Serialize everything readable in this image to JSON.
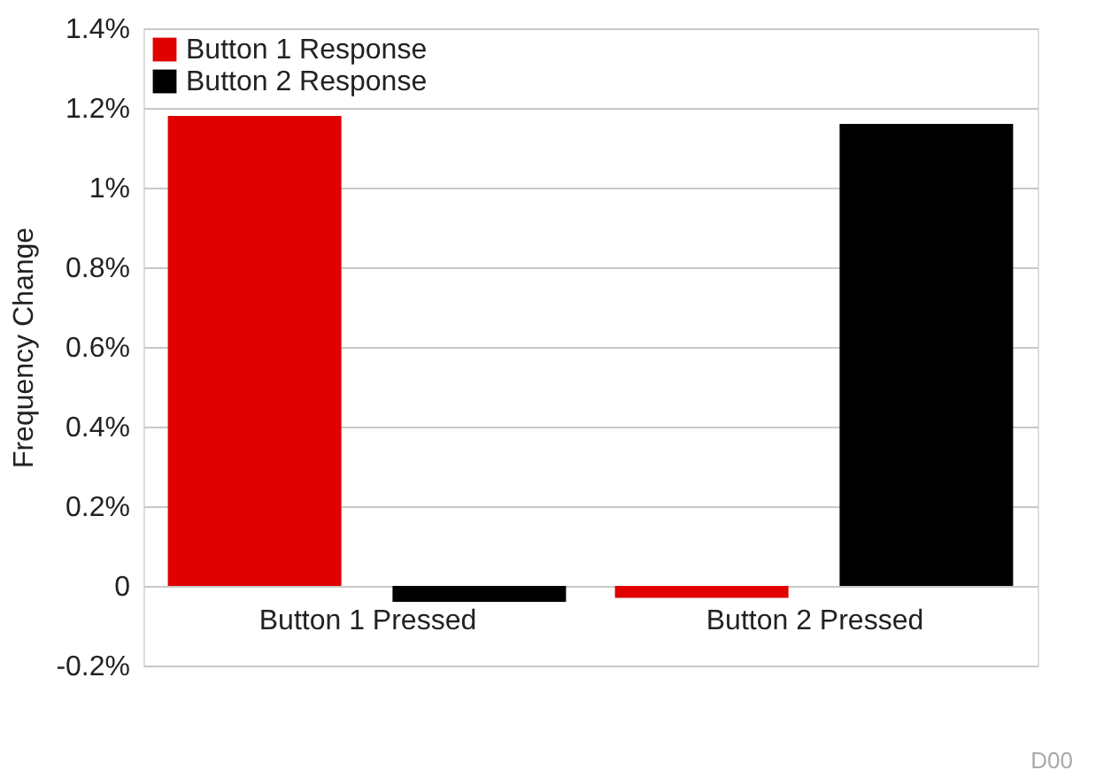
{
  "chart_data": {
    "type": "bar",
    "ylabel": "Frequency Change",
    "categories": [
      "Button 1 Pressed",
      "Button 2 Pressed"
    ],
    "series": [
      {
        "name": "Button 1 Response",
        "color": "#e00000",
        "values": [
          1.18,
          -0.03
        ]
      },
      {
        "name": "Button 2 Response",
        "color": "#000000",
        "values": [
          -0.04,
          1.16
        ]
      }
    ],
    "ylim": [
      -0.2,
      1.4
    ],
    "yticks": [
      {
        "value": -0.2,
        "label": "-0.2%"
      },
      0,
      {
        "value": 0.2,
        "label": "0.2%"
      },
      {
        "value": 0.4,
        "label": "0.4%"
      },
      {
        "value": 0.6,
        "label": "0.6%"
      },
      {
        "value": 0.8,
        "label": "0.8%"
      },
      {
        "value": 1,
        "label": "1%"
      },
      {
        "value": 1.2,
        "label": "1.2%"
      },
      {
        "value": 1.4,
        "label": "1.4%"
      }
    ],
    "grid": "y",
    "legend": "top left",
    "annotations": [
      "D00"
    ]
  }
}
